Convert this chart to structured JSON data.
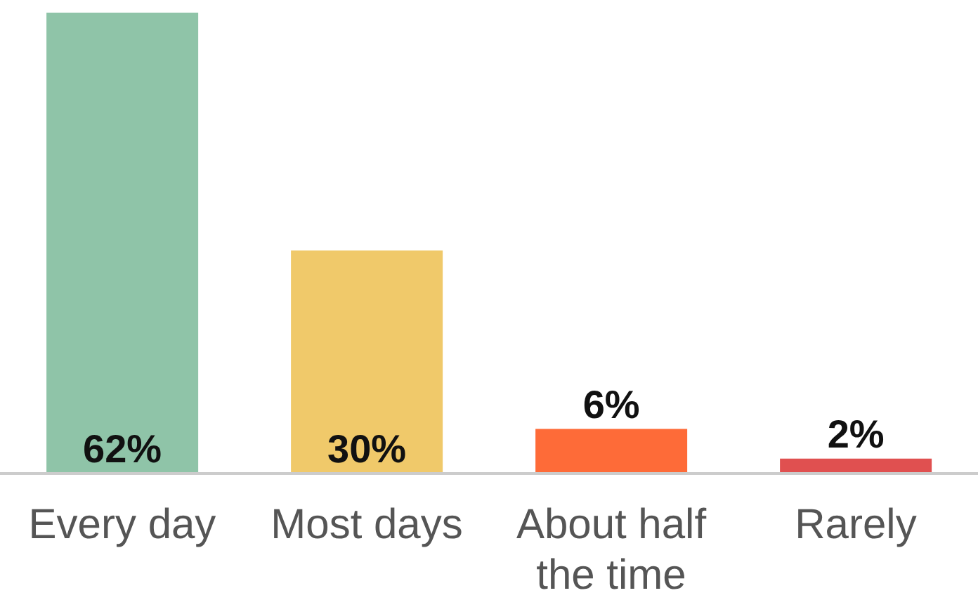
{
  "chart_data": {
    "type": "bar",
    "categories": [
      "Every day",
      "Most days",
      "About half the time",
      "Rarely"
    ],
    "values": [
      62,
      30,
      6,
      2
    ],
    "colors": [
      "#8fc4a8",
      "#f0c96a",
      "#fe6b38",
      "#e05050"
    ],
    "value_labels": [
      "62%",
      "30%",
      "6%",
      "2%"
    ],
    "grid": false,
    "legend": false
  }
}
